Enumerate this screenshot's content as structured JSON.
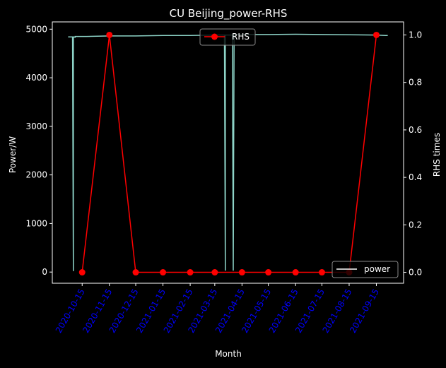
{
  "chart_data": {
    "type": "line",
    "title": "CU Beijing_power-RHS",
    "xlabel": "Month",
    "ylabel_left": "Power/W",
    "ylabel_right": "RHS times",
    "categories": [
      "2020-10-15",
      "2020-11-15",
      "2020-12-15",
      "2021-01-15",
      "2021-02-15",
      "2021-03-15",
      "2021-04-15",
      "2021-05-15",
      "2021-06-15",
      "2021-07-15",
      "2021-08-15",
      "2021-09-15"
    ],
    "ylim_left": [
      -230,
      5150
    ],
    "ylim_right": [
      -0.046,
      1.055
    ],
    "yticks_left": [
      0,
      1000,
      2000,
      3000,
      4000,
      5000
    ],
    "yticks_right": [
      0.0,
      0.2,
      0.4,
      0.6,
      0.8,
      1.0
    ],
    "grid": false,
    "colors": {
      "power": "#8dd3c7",
      "rhs": "#ff0000",
      "tick_labels_x": "#0000ff",
      "background": "#000000",
      "foreground": "#ffffff"
    },
    "series": [
      {
        "name": "RHS",
        "axis": "right",
        "values": [
          0,
          1,
          0,
          0,
          0,
          0,
          0,
          0,
          0,
          0,
          0,
          1
        ]
      },
      {
        "name": "power",
        "axis": "left",
        "points": [
          [
            "2020-09-29",
            4840
          ],
          [
            "2020-10-04",
            4840
          ],
          [
            "2020-10-05",
            20
          ],
          [
            "2020-10-05",
            4840
          ],
          [
            "2020-10-07",
            4835
          ],
          [
            "2020-10-07",
            4850
          ],
          [
            "2020-10-20",
            4850
          ],
          [
            "2020-11-15",
            4860
          ],
          [
            "2020-12-15",
            4860
          ],
          [
            "2021-01-15",
            4870
          ],
          [
            "2021-02-15",
            4870
          ],
          [
            "2021-03-15",
            4880
          ],
          [
            "2021-03-26",
            4880
          ],
          [
            "2021-03-27",
            30
          ],
          [
            "2021-03-27",
            4880
          ],
          [
            "2021-04-04",
            4880
          ],
          [
            "2021-04-05",
            30
          ],
          [
            "2021-04-06",
            4890
          ],
          [
            "2021-05-15",
            4890
          ],
          [
            "2021-06-15",
            4895
          ],
          [
            "2021-07-15",
            4890
          ],
          [
            "2021-08-15",
            4885
          ],
          [
            "2021-09-15",
            4880
          ],
          [
            "2021-09-25",
            4870
          ],
          [
            "2021-09-28",
            4870
          ]
        ]
      }
    ],
    "legend": [
      {
        "name": "RHS",
        "placement": "top-center"
      },
      {
        "name": "power",
        "placement": "lower-right"
      }
    ]
  }
}
